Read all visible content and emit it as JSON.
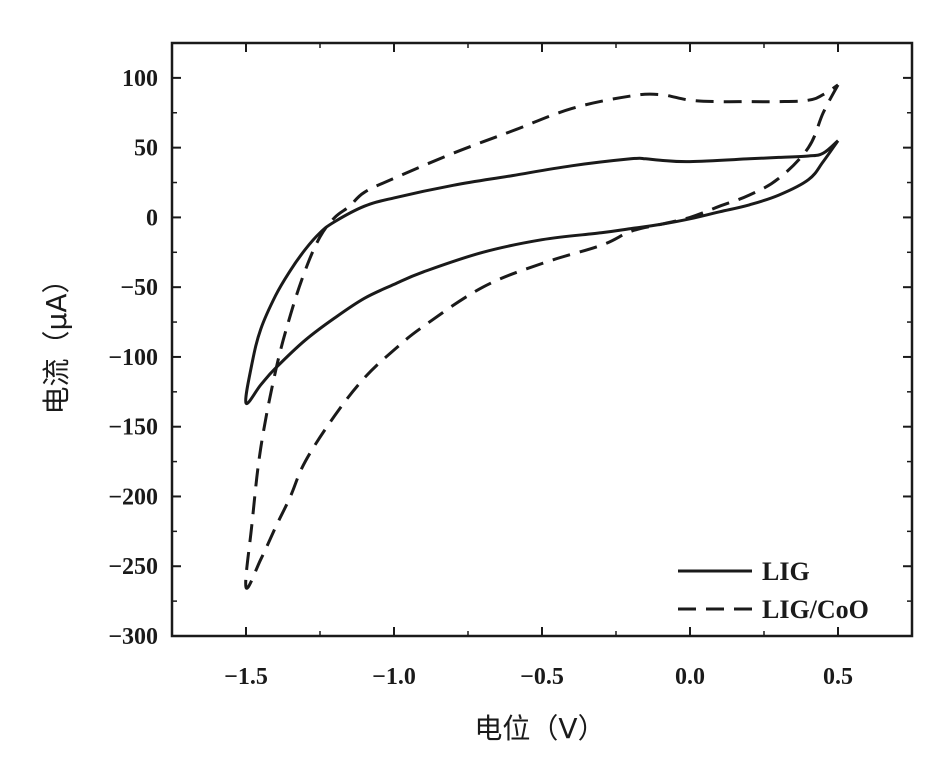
{
  "chart_data": {
    "type": "line",
    "xlabel": "电位（V）",
    "ylabel": "电流（μA）",
    "xlim": [
      -1.75,
      0.75
    ],
    "ylim": [
      -300,
      125
    ],
    "x_ticks": [
      -1.5,
      -1.0,
      -0.5,
      0.0,
      0.5
    ],
    "x_tick_labels": [
      "−1.5",
      "−1.0",
      "−0.5",
      "0.0",
      "0.5"
    ],
    "y_ticks": [
      -300,
      -250,
      -200,
      -150,
      -100,
      -50,
      0,
      50,
      100
    ],
    "y_tick_labels": [
      "−300",
      "−250",
      "−200",
      "−150",
      "−100",
      "−50",
      "0",
      "50",
      "100"
    ],
    "grid": false,
    "legend_position": "bottom-right",
    "series": [
      {
        "name": "LIG",
        "style": "solid",
        "color": "#1a1a1a",
        "x": [
          0.5,
          0.45,
          0.4,
          0.3,
          0.2,
          0.1,
          0.0,
          -0.1,
          -0.2,
          -0.3,
          -0.5,
          -0.7,
          -0.9,
          -1.0,
          -1.1,
          -1.2,
          -1.3,
          -1.4,
          -1.45,
          -1.5,
          -1.48,
          -1.45,
          -1.4,
          -1.35,
          -1.3,
          -1.25,
          -1.2,
          -1.1,
          -1.0,
          -0.8,
          -0.6,
          -0.4,
          -0.2,
          -0.15,
          -0.1,
          0.0,
          0.2,
          0.3,
          0.4,
          0.45,
          0.5
        ],
        "y": [
          55,
          40,
          27,
          16,
          9,
          4,
          -1,
          -5,
          -8,
          -11,
          -16,
          -25,
          -39,
          -48,
          -58,
          -72,
          -88,
          -108,
          -120,
          -133,
          -105,
          -80,
          -56,
          -38,
          -23,
          -11,
          -3,
          8,
          14,
          23,
          30,
          37,
          42,
          42,
          41,
          40,
          42,
          43,
          44,
          46,
          55
        ]
      },
      {
        "name": "LIG/CoO",
        "style": "dashed",
        "color": "#1a1a1a",
        "x": [
          0.5,
          0.45,
          0.4,
          0.3,
          0.2,
          0.1,
          0.0,
          -0.1,
          -0.2,
          -0.3,
          -0.5,
          -0.7,
          -0.9,
          -1.0,
          -1.1,
          -1.2,
          -1.3,
          -1.35,
          -1.4,
          -1.45,
          -1.5,
          -1.48,
          -1.45,
          -1.4,
          -1.35,
          -1.3,
          -1.25,
          -1.2,
          -1.15,
          -1.1,
          -1.0,
          -0.8,
          -0.6,
          -0.4,
          -0.2,
          -0.1,
          0.0,
          0.1,
          0.2,
          0.3,
          0.4,
          0.45,
          0.5
        ],
        "y": [
          95,
          75,
          50,
          28,
          16,
          8,
          0,
          -5,
          -10,
          -20,
          -33,
          -50,
          -78,
          -95,
          -115,
          -142,
          -175,
          -200,
          -222,
          -245,
          -265,
          -220,
          -165,
          -110,
          -70,
          -38,
          -14,
          0,
          8,
          18,
          28,
          46,
          62,
          78,
          87,
          88,
          84,
          83,
          83,
          83,
          84,
          88,
          95
        ]
      }
    ]
  }
}
